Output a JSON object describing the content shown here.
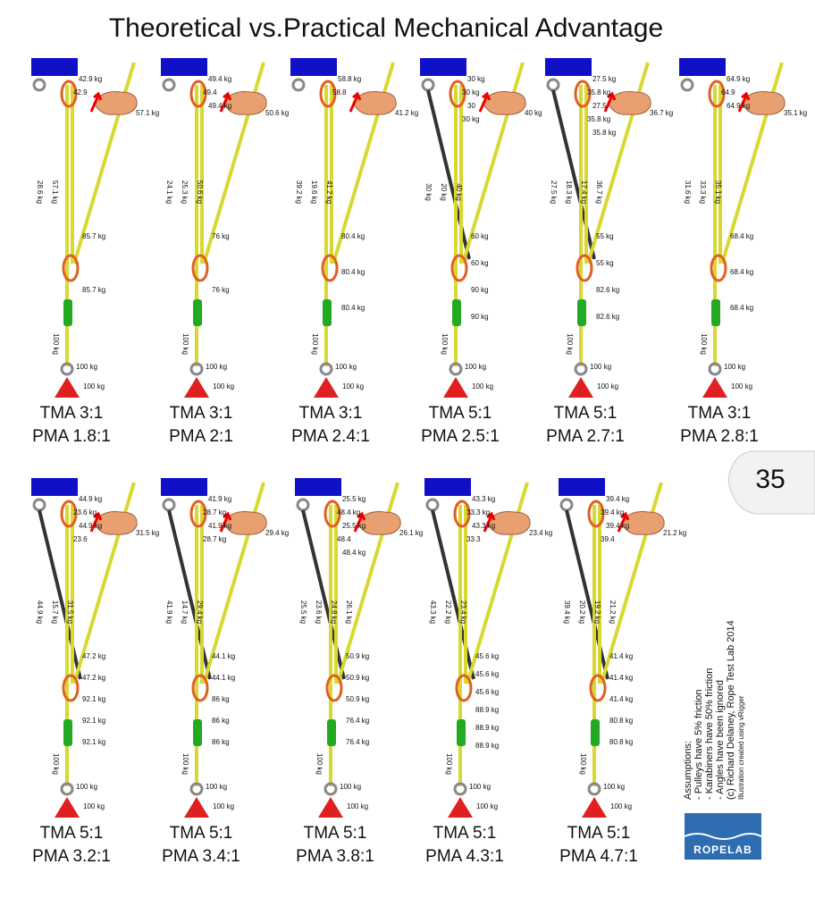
{
  "title": "Theoretical vs.Practical Mechanical Advantage",
  "page_number": "35",
  "notes": [
    "Assumptions:",
    "- Pulleys have 5% friction",
    "- Karabiners have 50% friction",
    "- Angles have been ignored",
    "(c) Richard Delaney, Rope Test Lab 2014",
    "Illustration created using vRigger"
  ],
  "logo": "ROPELAB",
  "panels": [
    {
      "tma": "TMA 3:1",
      "pma": "PMA 1.8:1",
      "top": [
        "42.9 kg",
        "42.9"
      ],
      "pull": "57.1 kg",
      "ropes": [
        "28.6 kg",
        "57.1 kg"
      ],
      "mid": [
        "85.7 kg",
        "85.7 kg"
      ],
      "rope_bottom": "100 kg",
      "anchor": [
        "100 kg",
        "100 kg"
      ]
    },
    {
      "tma": "TMA 3:1",
      "pma": "PMA 2:1",
      "top": [
        "49.4 kg",
        "49.4",
        "49.4 kg"
      ],
      "pull": "50.6 kg",
      "ropes": [
        "24.1 kg",
        "25.3 kg",
        "50.6 kg"
      ],
      "mid": [
        "76 kg",
        "76 kg"
      ],
      "rope_bottom": "100 kg",
      "anchor": [
        "100 kg",
        "100 kg"
      ]
    },
    {
      "tma": "TMA 3:1",
      "pma": "PMA 2.4:1",
      "top": [
        "58.8 kg",
        "58.8"
      ],
      "pull": "41.2 kg",
      "ropes": [
        "39.2 kg",
        "19.6 kg",
        "41.2 kg"
      ],
      "mid": [
        "80.4 kg",
        "80.4 kg",
        "80.4 kg"
      ],
      "rope_bottom": "100 kg",
      "anchor": [
        "100 kg",
        "100 kg"
      ]
    },
    {
      "tma": "TMA 5:1",
      "pma": "PMA 2.5:1",
      "top": [
        "30 kg",
        "30 kg",
        "30",
        "30 kg"
      ],
      "pull": "40 kg",
      "ropes": [
        "30 kg",
        "20 kg",
        "40 kg"
      ],
      "mid": [
        "60 kg",
        "60 kg",
        "90 kg",
        "90 kg"
      ],
      "rope_bottom": "100 kg",
      "anchor": [
        "100 kg",
        "100 kg"
      ]
    },
    {
      "tma": "TMA 5:1",
      "pma": "PMA 2.7:1",
      "top": [
        "27.5 kg",
        "35.8 kg",
        "27.5",
        "35.8 kg",
        "35.8 kg"
      ],
      "pull": "36.7 kg",
      "ropes": [
        "27.5 kg",
        "18.3 kg",
        "17.4 kg",
        "36.7 kg"
      ],
      "mid": [
        "55 kg",
        "55 kg",
        "82.6 kg",
        "82.6 kg"
      ],
      "rope_bottom": "100 kg",
      "anchor": [
        "100 kg",
        "100 kg"
      ]
    },
    {
      "tma": "TMA 3:1",
      "pma": "PMA 2.8:1",
      "top": [
        "64.9 kg",
        "64.9",
        "64.9 kg"
      ],
      "pull": "35.1 kg",
      "ropes": [
        "31.6 kg",
        "33.3 kg",
        "35.1 kg"
      ],
      "mid": [
        "68.4 kg",
        "68.4 kg",
        "68.4 kg"
      ],
      "rope_bottom": "100 kg",
      "anchor": [
        "100 kg",
        "100 kg"
      ]
    },
    {
      "tma": "TMA 5:1",
      "pma": "PMA 3.2:1",
      "top": [
        "44.9 kg",
        "23.6 kg",
        "44.9 kg",
        "23.6"
      ],
      "pull": "31.5 kg",
      "ropes": [
        "44.9 kg",
        "15.7 kg",
        "31.5 kg"
      ],
      "mid": [
        "47.2 kg",
        "47.2 kg",
        "92.1 kg",
        "92.1 kg",
        "92.1 kg"
      ],
      "rope_bottom": "100 kg",
      "anchor": [
        "100 kg",
        "100 kg"
      ]
    },
    {
      "tma": "TMA 5:1",
      "pma": "PMA 3.4:1",
      "top": [
        "41.9 kg",
        "28.7 kg",
        "41.9 kg",
        "28.7 kg"
      ],
      "pull": "29.4 kg",
      "ropes": [
        "41.9 kg",
        "14.7 kg",
        "29.4 kg"
      ],
      "mid": [
        "44.1 kg",
        "44.1 kg",
        "86 kg",
        "86 kg",
        "86 kg"
      ],
      "rope_bottom": "100 kg",
      "anchor": [
        "100 kg",
        "100 kg"
      ]
    },
    {
      "tma": "TMA 5:1",
      "pma": "PMA 3.8:1",
      "top": [
        "25.5 kg",
        "48.4 kg",
        "25.5 kg",
        "48.4",
        "48.4 kg"
      ],
      "pull": "26.1 kg",
      "ropes": [
        "25.5 kg",
        "23.6 kg",
        "24.8 kg",
        "26.1 kg"
      ],
      "mid": [
        "50.9 kg",
        "50.9 kg",
        "50.9 kg",
        "76.4 kg",
        "76.4 kg"
      ],
      "rope_bottom": "100 kg",
      "anchor": [
        "100 kg",
        "100 kg"
      ]
    },
    {
      "tma": "TMA 5:1",
      "pma": "PMA 4.3:1",
      "top": [
        "43.3 kg",
        "33.3 kg",
        "43.3 kg",
        "33.3"
      ],
      "pull": "23.4 kg",
      "ropes": [
        "43.3 kg",
        "22.2 kg",
        "23.4 kg"
      ],
      "mid": [
        "45.6 kg",
        "45.6 kg",
        "45.6 kg",
        "88.9 kg",
        "88.9 kg",
        "88.9 kg"
      ],
      "rope_bottom": "100 kg",
      "anchor": [
        "100 kg",
        "100 kg"
      ]
    },
    {
      "tma": "TMA 5:1",
      "pma": "PMA 4.7:1",
      "top": [
        "39.4 kg",
        "39.4 kg",
        "39.4 kg",
        "39.4"
      ],
      "pull": "21.2 kg",
      "ropes": [
        "39.4 kg",
        "20.2 kg",
        "19.2 kg",
        "21.2 kg"
      ],
      "mid": [
        "41.4 kg",
        "41.4 kg",
        "41.4 kg",
        "80.8 kg",
        "80.8 kg"
      ],
      "rope_bottom": "100 kg",
      "anchor": [
        "100 kg",
        "100 kg"
      ]
    }
  ]
}
